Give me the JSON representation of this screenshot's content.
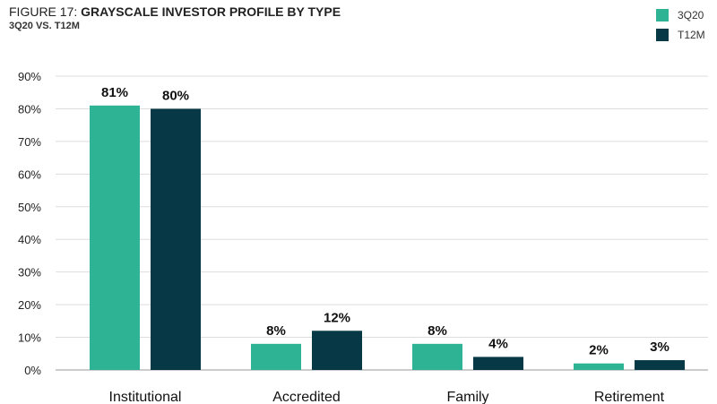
{
  "figure": {
    "prefix": "FIGURE 17: ",
    "title": "GRAYSCALE INVESTOR PROFILE BY TYPE",
    "subtitle": "3Q20 VS. T12M"
  },
  "colors": {
    "3Q20": "#2eb394",
    "T12M": "#063846",
    "grid": "#dddddd",
    "axis": "#999999"
  },
  "chart_data": {
    "type": "bar",
    "title": "GRAYSCALE INVESTOR PROFILE BY TYPE",
    "subtitle": "3Q20 VS. T12M",
    "xlabel": "",
    "ylabel": "",
    "categories": [
      "Institutional",
      "Accredited",
      "Family",
      "Retirement"
    ],
    "series": [
      {
        "name": "3Q20",
        "values": [
          81,
          8,
          8,
          2
        ],
        "labels": [
          "81%",
          "8%",
          "8%",
          "2%"
        ]
      },
      {
        "name": "T12M",
        "values": [
          80,
          12,
          4,
          3
        ],
        "labels": [
          "80%",
          "12%",
          "4%",
          "3%"
        ]
      }
    ],
    "ylim": [
      0,
      90
    ],
    "yticks": [
      0,
      10,
      20,
      30,
      40,
      50,
      60,
      70,
      80,
      90
    ],
    "ytick_labels": [
      "0%",
      "10%",
      "20%",
      "30%",
      "40%",
      "50%",
      "60%",
      "70%",
      "80%",
      "90%"
    ],
    "grid": true,
    "legend_position": "top-right"
  }
}
